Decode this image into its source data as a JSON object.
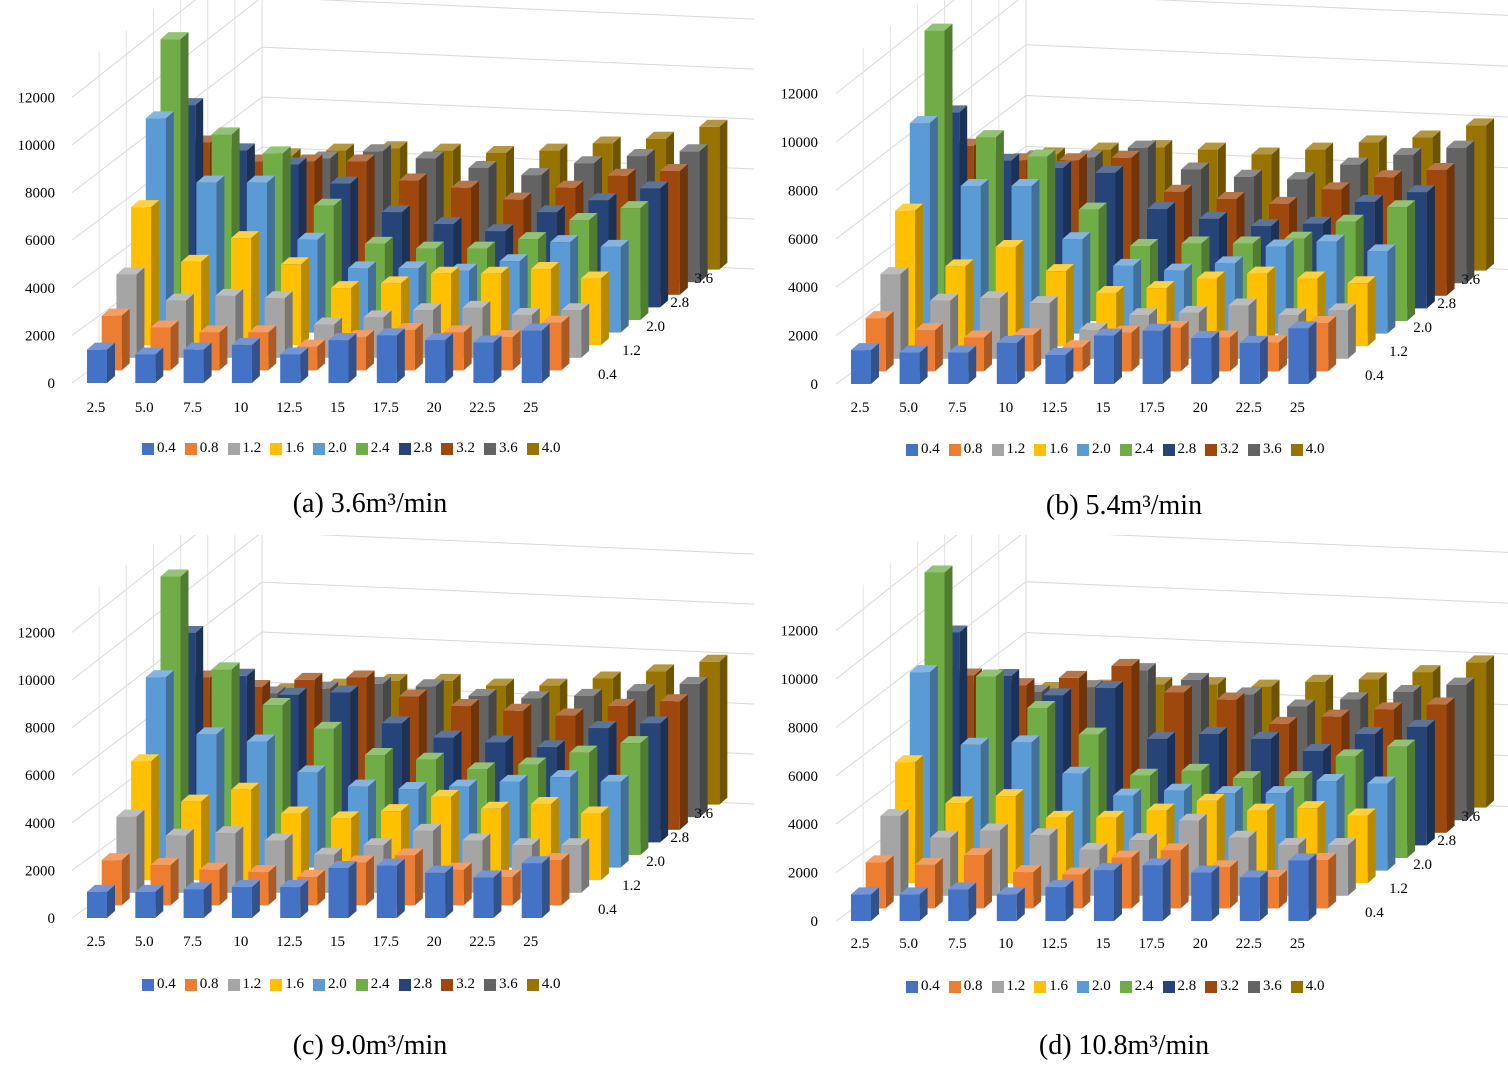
{
  "palette": [
    "#4472c4",
    "#ed7d31",
    "#a5a5a5",
    "#ffc000",
    "#5b9bd5",
    "#70ad47",
    "#264478",
    "#9e480e",
    "#636363",
    "#997300"
  ],
  "chart_data": [
    {
      "type": "bar3d",
      "caption": "(a) 3.6m³/min",
      "categories": [
        "2.5",
        "5.0",
        "7.5",
        "10",
        "12.5",
        "15",
        "17.5",
        "20",
        "22.5",
        "25"
      ],
      "series_labels": [
        "0.4",
        "0.8",
        "1.2",
        "1.6",
        "2.0",
        "2.4",
        "2.8",
        "3.2",
        "3.6",
        "4.0"
      ],
      "depth_tick_labels": [
        "0.4",
        "1.2",
        "2.0",
        "2.8",
        "3.6"
      ],
      "y_ticks": [
        "0",
        "2000",
        "4000",
        "6000",
        "8000",
        "10000",
        "12000"
      ],
      "ylim": [
        0,
        12000
      ],
      "values": [
        [
          1400,
          1200,
          1400,
          1600,
          1200,
          1800,
          2000,
          1800,
          1700,
          2200
        ],
        [
          2300,
          1800,
          1600,
          1600,
          1000,
          1400,
          1700,
          1600,
          1400,
          2000
        ],
        [
          3500,
          2400,
          2600,
          2500,
          1400,
          1700,
          2000,
          2100,
          1800,
          2000
        ],
        [
          5800,
          3500,
          4500,
          3400,
          2400,
          2600,
          3000,
          3000,
          3200,
          2800
        ],
        [
          9000,
          6300,
          6300,
          3900,
          2700,
          2700,
          2600,
          3000,
          3800,
          3600
        ],
        [
          11800,
          7800,
          7000,
          4800,
          3200,
          3000,
          3000,
          3400,
          4200,
          4700
        ],
        [
          8500,
          6600,
          6000,
          5200,
          4000,
          3500,
          3200,
          4000,
          4500,
          5000
        ],
        [
          6400,
          5600,
          5600,
          5600,
          4800,
          4500,
          4000,
          4500,
          5000,
          5200
        ],
        [
          5400,
          5000,
          5200,
          5500,
          5200,
          4800,
          4500,
          5000,
          5300,
          5500
        ],
        [
          4700,
          4800,
          5000,
          5100,
          5000,
          4900,
          5000,
          5300,
          5500,
          6000
        ]
      ]
    },
    {
      "type": "bar3d",
      "caption": "(b) 5.4m³/min",
      "categories": [
        "2.5",
        "5.0",
        "7.5",
        "10",
        "12.5",
        "15",
        "17.5",
        "20",
        "22.5",
        "25"
      ],
      "series_labels": [
        "0.4",
        "0.8",
        "1.2",
        "1.6",
        "2.0",
        "2.4",
        "2.8",
        "3.2",
        "3.6",
        "4.0"
      ],
      "depth_tick_labels": [
        "0.4",
        "1.2",
        "2.0",
        "2.8",
        "3.6"
      ],
      "y_ticks": [
        "0",
        "2000",
        "4000",
        "6000",
        "8000",
        "10000",
        "12000"
      ],
      "ylim": [
        0,
        12000
      ],
      "values": [
        [
          1400,
          1300,
          1300,
          1700,
          1200,
          2000,
          2200,
          1900,
          1700,
          2300
        ],
        [
          2200,
          1700,
          1400,
          1500,
          1000,
          1600,
          1800,
          1400,
          1200,
          2000
        ],
        [
          3500,
          2400,
          2500,
          2300,
          1200,
          1800,
          1900,
          2200,
          1800,
          2000
        ],
        [
          5600,
          3300,
          4100,
          3100,
          2200,
          2400,
          2800,
          3000,
          2800,
          2600
        ],
        [
          8700,
          6100,
          6100,
          3900,
          2800,
          2600,
          2900,
          3600,
          3800,
          3400
        ],
        [
          12000,
          7600,
          6800,
          4600,
          3100,
          3200,
          3200,
          3400,
          4100,
          4700
        ],
        [
          8100,
          6100,
          5800,
          5600,
          4100,
          3700,
          3400,
          3500,
          4400,
          4800
        ],
        [
          6200,
          5600,
          5600,
          5700,
          4300,
          4000,
          3800,
          4400,
          4900,
          5200
        ],
        [
          5200,
          5200,
          5200,
          5600,
          4700,
          4400,
          4300,
          4900,
          5300,
          5600
        ],
        [
          4500,
          4800,
          5000,
          5100,
          5000,
          4800,
          5000,
          5300,
          5500,
          6000
        ]
      ]
    },
    {
      "type": "bar3d",
      "caption": "(c) 9.0m³/min",
      "categories": [
        "2.5",
        "5.0",
        "7.5",
        "10",
        "12.5",
        "15",
        "17.5",
        "20",
        "22.5",
        "25"
      ],
      "series_labels": [
        "0.4",
        "0.8",
        "1.2",
        "1.6",
        "2.0",
        "2.4",
        "2.8",
        "3.2",
        "3.6",
        "4.0"
      ],
      "depth_tick_labels": [
        "0.4",
        "1.2",
        "2.0",
        "2.8",
        "3.6"
      ],
      "y_ticks": [
        "0",
        "2000",
        "4000",
        "6000",
        "8000",
        "10000",
        "12000"
      ],
      "ylim": [
        0,
        12000
      ],
      "values": [
        [
          1100,
          1100,
          1200,
          1300,
          1300,
          2100,
          2200,
          1900,
          1700,
          2300
        ],
        [
          1900,
          1700,
          1500,
          1400,
          1200,
          1800,
          2100,
          1500,
          1200,
          1900
        ],
        [
          3200,
          2400,
          2500,
          2200,
          1600,
          2000,
          2600,
          2200,
          2000,
          2000
        ],
        [
          5000,
          3300,
          3800,
          2800,
          2600,
          2900,
          3500,
          3000,
          3200,
          2800
        ],
        [
          8000,
          5600,
          5300,
          4000,
          3400,
          3300,
          3400,
          3600,
          3800,
          3600
        ],
        [
          11700,
          7800,
          6300,
          5300,
          4200,
          4000,
          3600,
          3800,
          4300,
          4700
        ],
        [
          8800,
          7000,
          6200,
          6300,
          5000,
          4400,
          4200,
          4000,
          4800,
          5000
        ],
        [
          6400,
          6000,
          6300,
          6400,
          5600,
          5200,
          5000,
          4800,
          5200,
          5400
        ],
        [
          5300,
          5200,
          5400,
          5600,
          5500,
          5100,
          5000,
          5100,
          5300,
          5600
        ],
        [
          4700,
          4800,
          5000,
          5200,
          5200,
          5000,
          5000,
          5300,
          5600,
          6000
        ]
      ]
    },
    {
      "type": "bar3d",
      "caption": "(d) 10.8m³/min",
      "categories": [
        "2.5",
        "5.0",
        "7.5",
        "10",
        "12.5",
        "15",
        "17.5",
        "20",
        "22.5",
        "25"
      ],
      "series_labels": [
        "0.4",
        "0.8",
        "1.2",
        "1.6",
        "2.0",
        "2.4",
        "2.8",
        "3.2",
        "3.6",
        "4.0"
      ],
      "depth_tick_labels": [
        "0.4",
        "1.2",
        "2.0",
        "2.8",
        "3.6"
      ],
      "y_ticks": [
        "0",
        "2000",
        "4000",
        "6000",
        "8000",
        "10000",
        "12000"
      ],
      "ylim": [
        0,
        12000
      ],
      "values": [
        [
          1100,
          1100,
          1300,
          1100,
          1400,
          2100,
          2300,
          2000,
          1800,
          2500
        ],
        [
          1900,
          1800,
          2200,
          1500,
          1400,
          2100,
          2400,
          1700,
          1300,
          2000
        ],
        [
          3300,
          2400,
          2700,
          2500,
          1900,
          2300,
          3100,
          2400,
          2100,
          2100
        ],
        [
          5000,
          3300,
          3600,
          2700,
          2700,
          3000,
          3400,
          3000,
          3100,
          2800
        ],
        [
          8200,
          5200,
          5300,
          4000,
          3100,
          3300,
          3200,
          3200,
          3700,
          3600
        ],
        [
          11800,
          7500,
          6200,
          5100,
          3400,
          3600,
          3300,
          3300,
          4200,
          4600
        ],
        [
          8800,
          7000,
          6200,
          6500,
          4400,
          4600,
          4400,
          3900,
          4600,
          4900
        ],
        [
          6500,
          6100,
          6400,
          6900,
          5800,
          5500,
          4500,
          4800,
          5100,
          5300
        ],
        [
          5400,
          5300,
          5500,
          6200,
          5800,
          5200,
          4700,
          5000,
          5300,
          5600
        ],
        [
          4800,
          4900,
          5000,
          5100,
          5100,
          5000,
          5200,
          5300,
          5600,
          6000
        ]
      ]
    }
  ]
}
